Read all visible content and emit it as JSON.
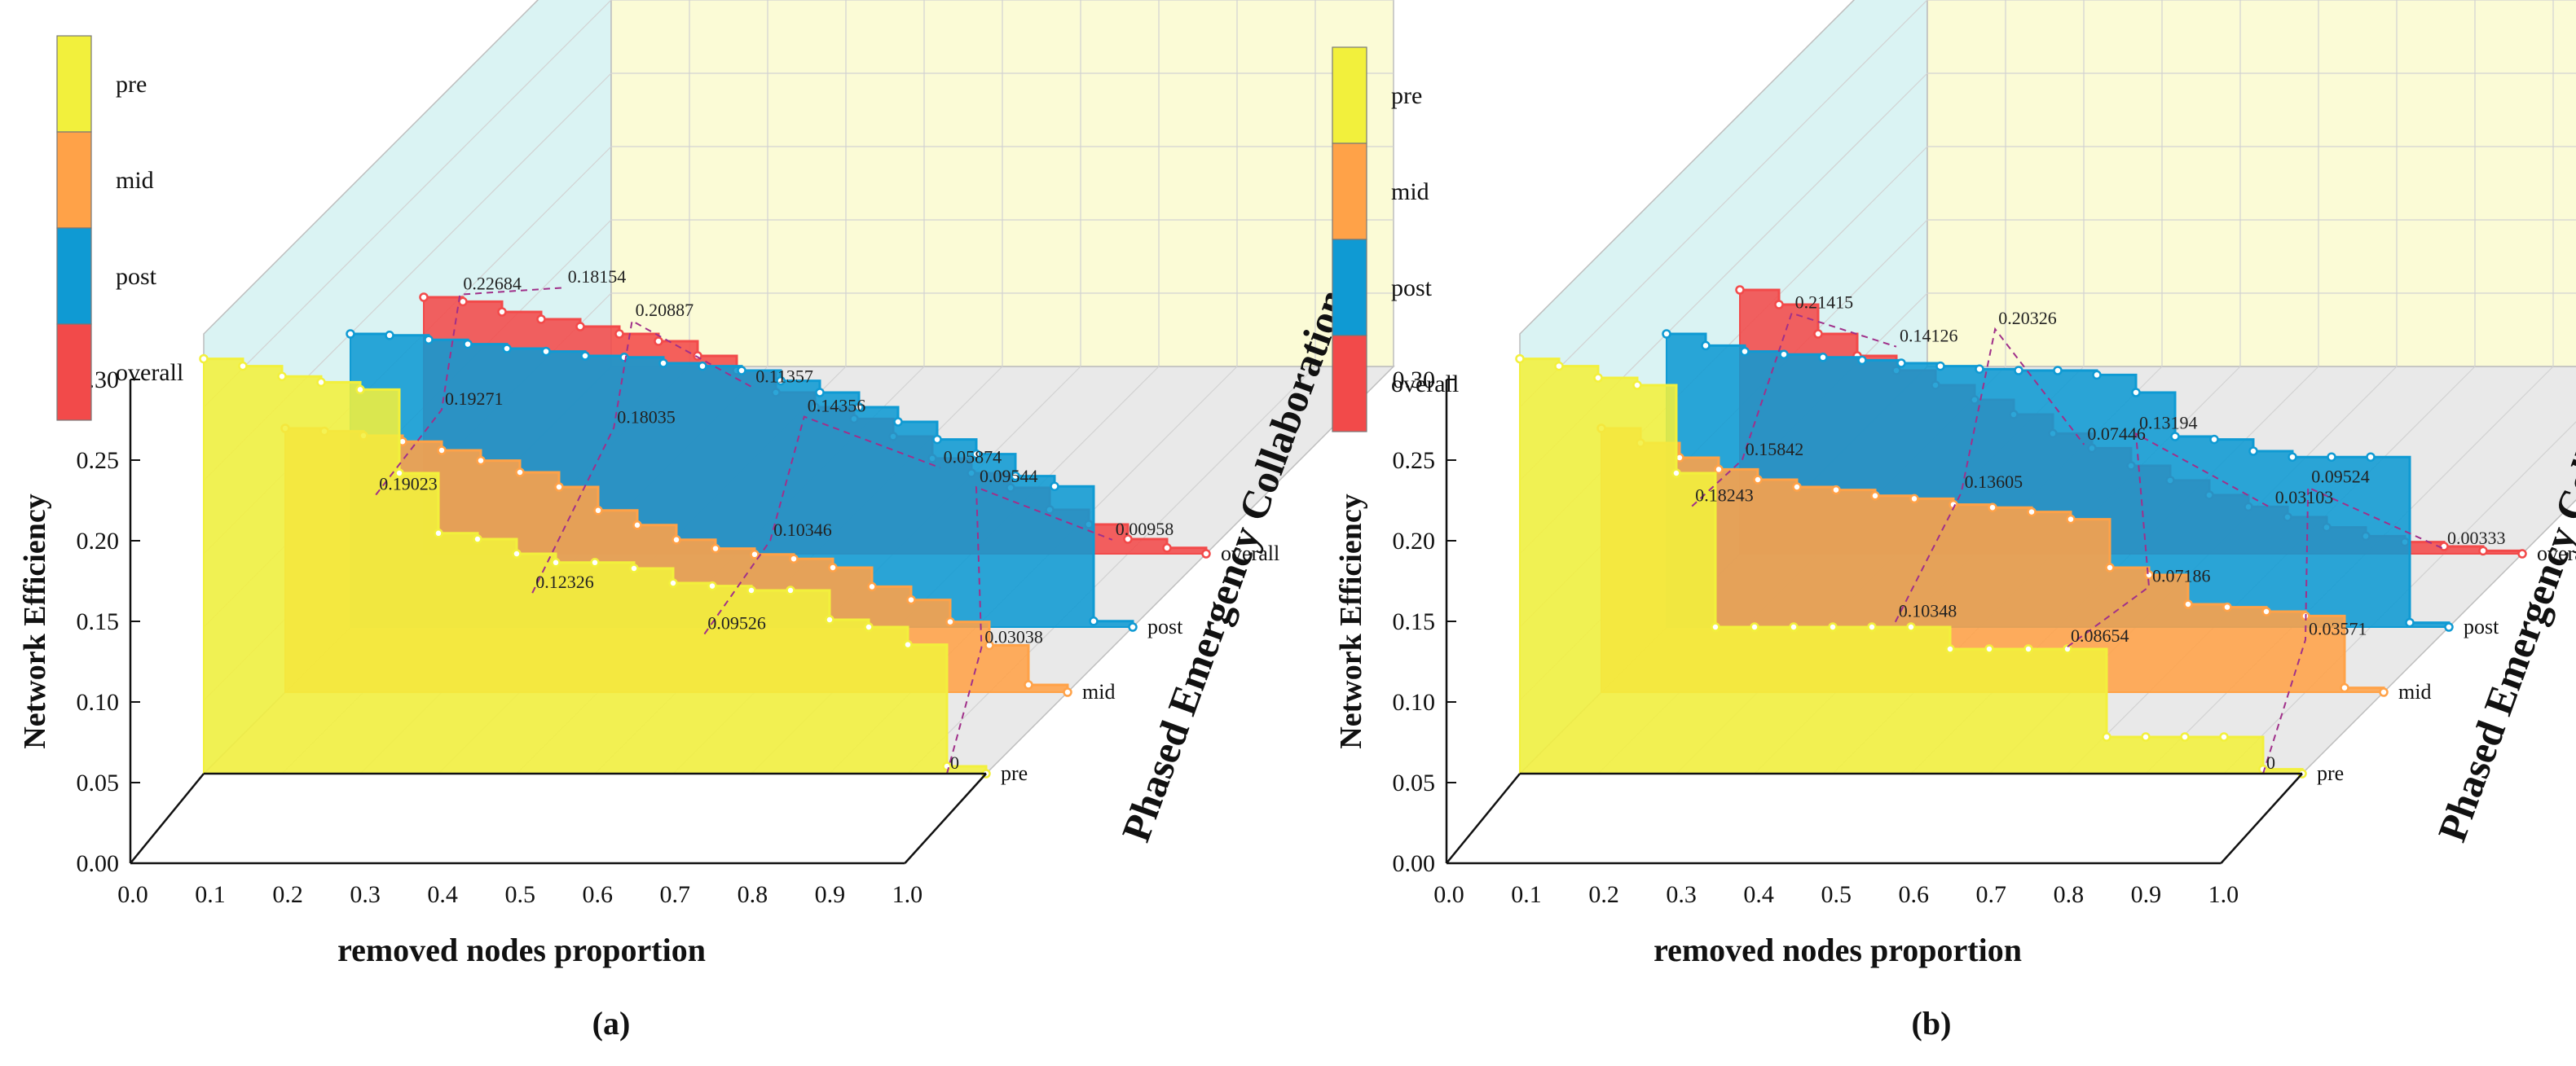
{
  "colors": {
    "pre": "#f2f03c",
    "mid": "#ffa248",
    "post": "#0f9ad3",
    "overall": "#f24a4a",
    "back_wall": "#fbfbd6",
    "side_wall": "#daf3f3",
    "floor": "#e9e9e9",
    "grid": "#d2d2d2",
    "connector": "#a0308a"
  },
  "chart_data": [
    {
      "type": "area",
      "panel_label": "(a)",
      "xlabel": "removed nodes proportion",
      "ylabel": "Network Efficiency",
      "zlabel": "Phased Emergency Collaboration",
      "xlim": [
        0.0,
        1.0
      ],
      "ylim": [
        0.0,
        0.3
      ],
      "xticks": [
        "0.0",
        "0.1",
        "0.2",
        "0.3",
        "0.4",
        "0.5",
        "0.6",
        "0.7",
        "0.8",
        "0.9",
        "1.0"
      ],
      "yticks": [
        "0.00",
        "0.05",
        "0.10",
        "0.15",
        "0.20",
        "0.25",
        "0.30"
      ],
      "legend": [
        "pre",
        "mid",
        "post",
        "overall"
      ],
      "series": [
        {
          "name": "pre",
          "x": [
            0.0,
            0.05,
            0.1,
            0.15,
            0.2,
            0.25,
            0.3,
            0.35,
            0.4,
            0.45,
            0.5,
            0.55,
            0.6,
            0.65,
            0.7,
            0.75,
            0.8,
            0.85,
            0.9,
            0.95,
            1.0
          ],
          "y": [
            0.283,
            0.278,
            0.271,
            0.267,
            0.262,
            0.205,
            0.164,
            0.16,
            0.15,
            0.144,
            0.144,
            0.14,
            0.13,
            0.128,
            0.125,
            0.125,
            0.105,
            0.1,
            0.088,
            0.005,
            0.0
          ],
          "labels": [
            {
              "x": 0.22,
              "y": 0.19023,
              "text": "0.19023"
            },
            {
              "x": 0.42,
              "y": 0.12326,
              "text": "0.12326"
            },
            {
              "x": 0.64,
              "y": 0.09526,
              "text": "0.09526"
            },
            {
              "x": 0.95,
              "y": 0.0,
              "text": "0"
            }
          ]
        },
        {
          "name": "mid",
          "x": [
            0.0,
            0.05,
            0.1,
            0.15,
            0.2,
            0.25,
            0.3,
            0.35,
            0.4,
            0.45,
            0.5,
            0.55,
            0.6,
            0.65,
            0.7,
            0.75,
            0.8,
            0.85,
            0.9,
            0.95,
            1.0
          ],
          "y": [
            0.18,
            0.178,
            0.175,
            0.171,
            0.165,
            0.158,
            0.15,
            0.14,
            0.124,
            0.114,
            0.104,
            0.098,
            0.094,
            0.091,
            0.085,
            0.072,
            0.063,
            0.048,
            0.032,
            0.005,
            0.0
          ],
          "labels": [
            {
              "x": 0.2,
              "y": 0.19271,
              "text": "0.19271"
            },
            {
              "x": 0.42,
              "y": 0.18035,
              "text": "0.18035"
            },
            {
              "x": 0.62,
              "y": 0.10346,
              "text": "0.10346"
            },
            {
              "x": 0.89,
              "y": 0.03038,
              "text": "0.03038"
            }
          ]
        },
        {
          "name": "post",
          "x": [
            0.0,
            0.05,
            0.1,
            0.15,
            0.2,
            0.25,
            0.3,
            0.35,
            0.4,
            0.45,
            0.5,
            0.55,
            0.6,
            0.65,
            0.7,
            0.75,
            0.8,
            0.85,
            0.9,
            0.95,
            1.0
          ],
          "y": [
            0.2,
            0.199,
            0.196,
            0.193,
            0.19,
            0.188,
            0.185,
            0.184,
            0.18,
            0.178,
            0.175,
            0.168,
            0.16,
            0.15,
            0.14,
            0.128,
            0.118,
            0.103,
            0.096,
            0.004,
            0.0
          ],
          "labels": [
            {
              "x": 0.14,
              "y": 0.22684,
              "text": "0.22684"
            },
            {
              "x": 0.36,
              "y": 0.20887,
              "text": "0.20887"
            },
            {
              "x": 0.58,
              "y": 0.14356,
              "text": "0.14356"
            },
            {
              "x": 0.8,
              "y": 0.09544,
              "text": "0.09544"
            }
          ]
        },
        {
          "name": "overall",
          "x": [
            0.0,
            0.05,
            0.1,
            0.15,
            0.2,
            0.25,
            0.3,
            0.35,
            0.4,
            0.45,
            0.5,
            0.55,
            0.6,
            0.65,
            0.7,
            0.75,
            0.8,
            0.85,
            0.9,
            0.95,
            1.0
          ],
          "y": [
            0.175,
            0.172,
            0.165,
            0.16,
            0.155,
            0.15,
            0.145,
            0.135,
            0.125,
            0.11,
            0.1,
            0.092,
            0.08,
            0.065,
            0.055,
            0.045,
            0.03,
            0.02,
            0.01,
            0.004,
            0.0
          ],
          "labels": [
            {
              "x": 0.18,
              "y": 0.18154,
              "text": "0.18154"
            },
            {
              "x": 0.42,
              "y": 0.11357,
              "text": "0.11357"
            },
            {
              "x": 0.66,
              "y": 0.05874,
              "text": "0.05874"
            },
            {
              "x": 0.88,
              "y": 0.00958,
              "text": "0.00958"
            }
          ]
        }
      ]
    },
    {
      "type": "area",
      "panel_label": "(b)",
      "xlabel": "removed nodes proportion",
      "ylabel": "Network Efficiency",
      "zlabel": "Phased Emergency Collaboration",
      "xlim": [
        0.0,
        1.0
      ],
      "ylim": [
        0.0,
        0.3
      ],
      "xticks": [
        "0.0",
        "0.1",
        "0.2",
        "0.3",
        "0.4",
        "0.5",
        "0.6",
        "0.7",
        "0.8",
        "0.9",
        "1.0"
      ],
      "yticks": [
        "0.00",
        "0.05",
        "0.10",
        "0.15",
        "0.20",
        "0.25",
        "0.30"
      ],
      "legend": [
        "pre",
        "mid",
        "post",
        "overall"
      ],
      "series": [
        {
          "name": "pre",
          "x": [
            0.0,
            0.05,
            0.1,
            0.15,
            0.2,
            0.25,
            0.3,
            0.35,
            0.4,
            0.45,
            0.5,
            0.55,
            0.6,
            0.65,
            0.7,
            0.75,
            0.8,
            0.85,
            0.9,
            0.95,
            1.0
          ],
          "y": [
            0.283,
            0.278,
            0.27,
            0.265,
            0.205,
            0.1,
            0.1,
            0.1,
            0.1,
            0.1,
            0.1,
            0.085,
            0.085,
            0.085,
            0.085,
            0.025,
            0.025,
            0.025,
            0.025,
            0.003,
            0.0
          ],
          "labels": [
            {
              "x": 0.22,
              "y": 0.18243,
              "text": "0.18243"
            },
            {
              "x": 0.48,
              "y": 0.10348,
              "text": "0.10348"
            },
            {
              "x": 0.7,
              "y": 0.08654,
              "text": "0.08654"
            },
            {
              "x": 0.95,
              "y": 0.0,
              "text": "0"
            }
          ]
        },
        {
          "name": "mid",
          "x": [
            0.0,
            0.05,
            0.1,
            0.15,
            0.2,
            0.25,
            0.3,
            0.35,
            0.4,
            0.45,
            0.5,
            0.55,
            0.6,
            0.65,
            0.7,
            0.75,
            0.8,
            0.85,
            0.9,
            0.95,
            1.0
          ],
          "y": [
            0.18,
            0.17,
            0.16,
            0.152,
            0.145,
            0.14,
            0.138,
            0.134,
            0.132,
            0.128,
            0.126,
            0.123,
            0.118,
            0.085,
            0.08,
            0.06,
            0.058,
            0.055,
            0.052,
            0.003,
            0.0
          ],
          "labels": [
            {
              "x": 0.18,
              "y": 0.15842,
              "text": "0.15842"
            },
            {
              "x": 0.46,
              "y": 0.13605,
              "text": "0.13605"
            },
            {
              "x": 0.7,
              "y": 0.07186,
              "text": "0.07186"
            },
            {
              "x": 0.9,
              "y": 0.03571,
              "text": "0.03571"
            }
          ]
        },
        {
          "name": "post",
          "x": [
            0.0,
            0.05,
            0.1,
            0.15,
            0.2,
            0.25,
            0.3,
            0.35,
            0.4,
            0.45,
            0.5,
            0.55,
            0.6,
            0.65,
            0.7,
            0.75,
            0.8,
            0.85,
            0.9,
            0.95,
            1.0
          ],
          "y": [
            0.2,
            0.192,
            0.188,
            0.186,
            0.184,
            0.182,
            0.18,
            0.178,
            0.176,
            0.175,
            0.175,
            0.172,
            0.16,
            0.13,
            0.128,
            0.12,
            0.116,
            0.116,
            0.116,
            0.003,
            0.0
          ],
          "labels": [
            {
              "x": 0.16,
              "y": 0.21415,
              "text": "0.21415"
            },
            {
              "x": 0.42,
              "y": 0.20326,
              "text": "0.20326"
            },
            {
              "x": 0.6,
              "y": 0.13194,
              "text": "0.13194"
            },
            {
              "x": 0.82,
              "y": 0.09524,
              "text": "0.09524"
            }
          ]
        },
        {
          "name": "overall",
          "x": [
            0.0,
            0.05,
            0.1,
            0.15,
            0.2,
            0.25,
            0.3,
            0.35,
            0.4,
            0.45,
            0.5,
            0.55,
            0.6,
            0.65,
            0.7,
            0.75,
            0.8,
            0.85,
            0.9,
            0.95,
            1.0
          ],
          "y": [
            0.18,
            0.17,
            0.15,
            0.135,
            0.125,
            0.115,
            0.105,
            0.095,
            0.082,
            0.072,
            0.06,
            0.05,
            0.04,
            0.032,
            0.025,
            0.018,
            0.012,
            0.008,
            0.005,
            0.002,
            0.0
          ],
          "labels": [
            {
              "x": 0.2,
              "y": 0.14126,
              "text": "0.14126"
            },
            {
              "x": 0.44,
              "y": 0.07446,
              "text": "0.07446"
            },
            {
              "x": 0.68,
              "y": 0.03103,
              "text": "0.03103"
            },
            {
              "x": 0.9,
              "y": 0.00333,
              "text": "0.00333"
            }
          ]
        }
      ]
    }
  ]
}
